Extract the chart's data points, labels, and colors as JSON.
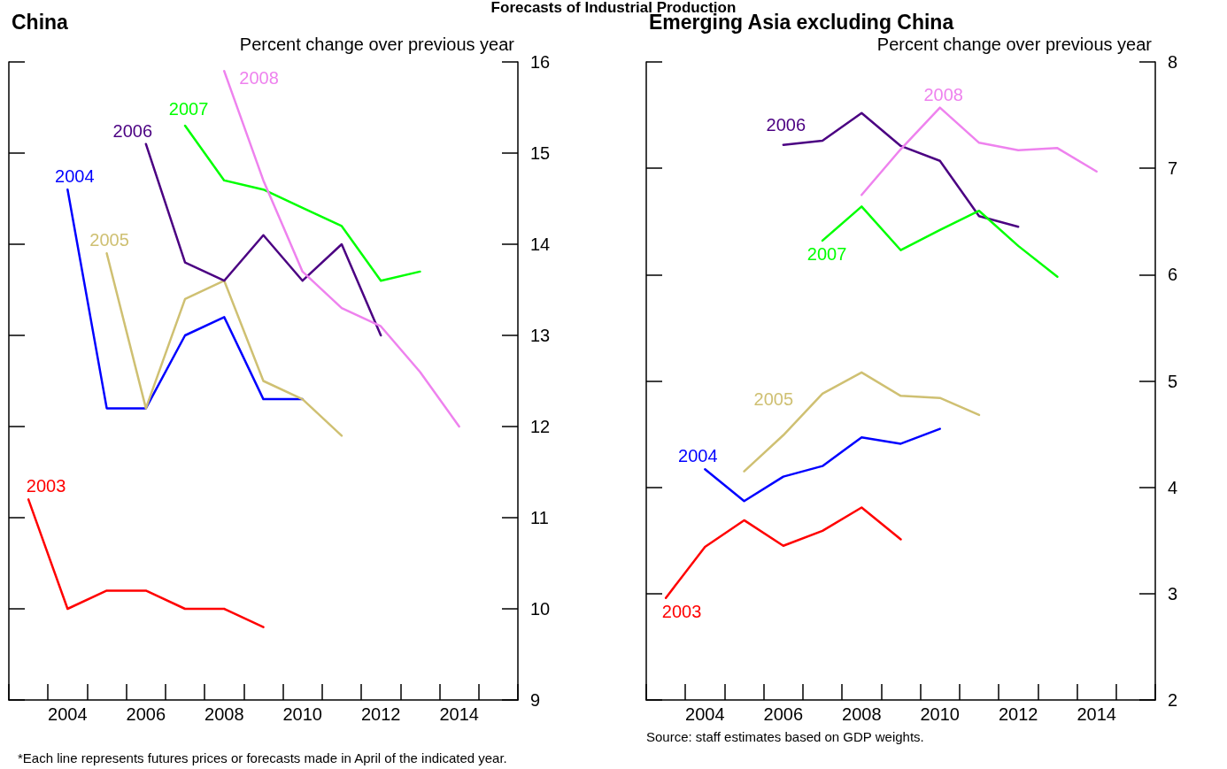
{
  "chart_data": [
    {
      "type": "line",
      "title": "China",
      "ylabel": "Percent change over previous year",
      "annotations": [
        "Forecasts of Industrial Production",
        "*Each line represents futures prices or forecasts made in April of the indicated year."
      ],
      "categories": [
        null,
        "2004",
        null,
        "2006",
        null,
        "2008",
        null,
        "2010",
        null,
        "2012",
        null,
        "2014",
        null
      ],
      "ylim": [
        9,
        16
      ],
      "yticks": [
        9,
        10,
        11,
        12,
        13,
        14,
        15,
        16
      ],
      "grid": false,
      "legend": false,
      "marker": "none",
      "line_style": "solid",
      "series": [
        {
          "name": "2003",
          "color": "#ff0000",
          "values": [
            11.2,
            10.0,
            10.2,
            10.2,
            10.0,
            10.0,
            9.8,
            null,
            null,
            null,
            null,
            null,
            null
          ]
        },
        {
          "name": "2004",
          "color": "#0000ff",
          "values": [
            null,
            14.6,
            12.2,
            12.2,
            13.0,
            13.2,
            12.3,
            12.3,
            null,
            null,
            null,
            null,
            null
          ]
        },
        {
          "name": "2005",
          "color": "#cfc072",
          "values": [
            null,
            null,
            13.9,
            12.2,
            13.4,
            13.6,
            12.5,
            12.3,
            11.9,
            null,
            null,
            null,
            null
          ]
        },
        {
          "name": "2006",
          "color": "#4b0082",
          "values": [
            null,
            null,
            null,
            15.1,
            13.8,
            13.6,
            14.1,
            13.6,
            14.0,
            13.0,
            null,
            null,
            null
          ]
        },
        {
          "name": "2007",
          "color": "#00ff00",
          "values": [
            null,
            null,
            null,
            null,
            15.3,
            14.7,
            14.6,
            14.4,
            14.2,
            13.6,
            13.7,
            null,
            null
          ]
        },
        {
          "name": "2008",
          "color": "#ee82ee",
          "values": [
            null,
            null,
            null,
            null,
            null,
            15.9,
            14.7,
            13.7,
            13.3,
            13.1,
            12.6,
            12.0,
            null
          ]
        }
      ]
    },
    {
      "type": "line",
      "title": "Emerging Asia excluding China",
      "ylabel": "Percent change over previous year",
      "annotations": [
        "Source: staff estimates based on GDP weights."
      ],
      "categories": [
        null,
        "2004",
        null,
        "2006",
        null,
        "2008",
        null,
        "2010",
        null,
        "2012",
        null,
        "2014",
        null
      ],
      "ylim": [
        2,
        8
      ],
      "yticks": [
        2,
        3,
        4,
        5,
        6,
        7,
        8
      ],
      "grid": false,
      "legend": false,
      "marker": "none",
      "line_style": "solid",
      "series": [
        {
          "name": "2003",
          "color": "#ff0000",
          "values": [
            2.96,
            3.44,
            3.69,
            3.45,
            3.59,
            3.81,
            3.51,
            null,
            null,
            null,
            null,
            null,
            null
          ]
        },
        {
          "name": "2004",
          "color": "#0000ff",
          "values": [
            null,
            4.17,
            3.87,
            4.1,
            4.2,
            4.47,
            4.41,
            4.55,
            null,
            null,
            null,
            null,
            null
          ]
        },
        {
          "name": "2005",
          "color": "#cfc072",
          "values": [
            null,
            null,
            4.15,
            4.49,
            4.88,
            5.08,
            4.86,
            4.84,
            4.68,
            null,
            null,
            null,
            null
          ]
        },
        {
          "name": "2006",
          "color": "#4b0082",
          "values": [
            null,
            null,
            null,
            7.22,
            7.26,
            7.52,
            7.21,
            7.07,
            6.55,
            6.45,
            null,
            null,
            null
          ]
        },
        {
          "name": "2007",
          "color": "#00ff00",
          "values": [
            null,
            null,
            null,
            null,
            6.32,
            6.64,
            6.23,
            6.42,
            6.6,
            6.27,
            5.98,
            null,
            null
          ]
        },
        {
          "name": "2008",
          "color": "#ee82ee",
          "values": [
            null,
            null,
            null,
            null,
            null,
            6.75,
            7.18,
            7.57,
            7.24,
            7.17,
            7.19,
            6.97,
            null
          ]
        }
      ]
    }
  ]
}
